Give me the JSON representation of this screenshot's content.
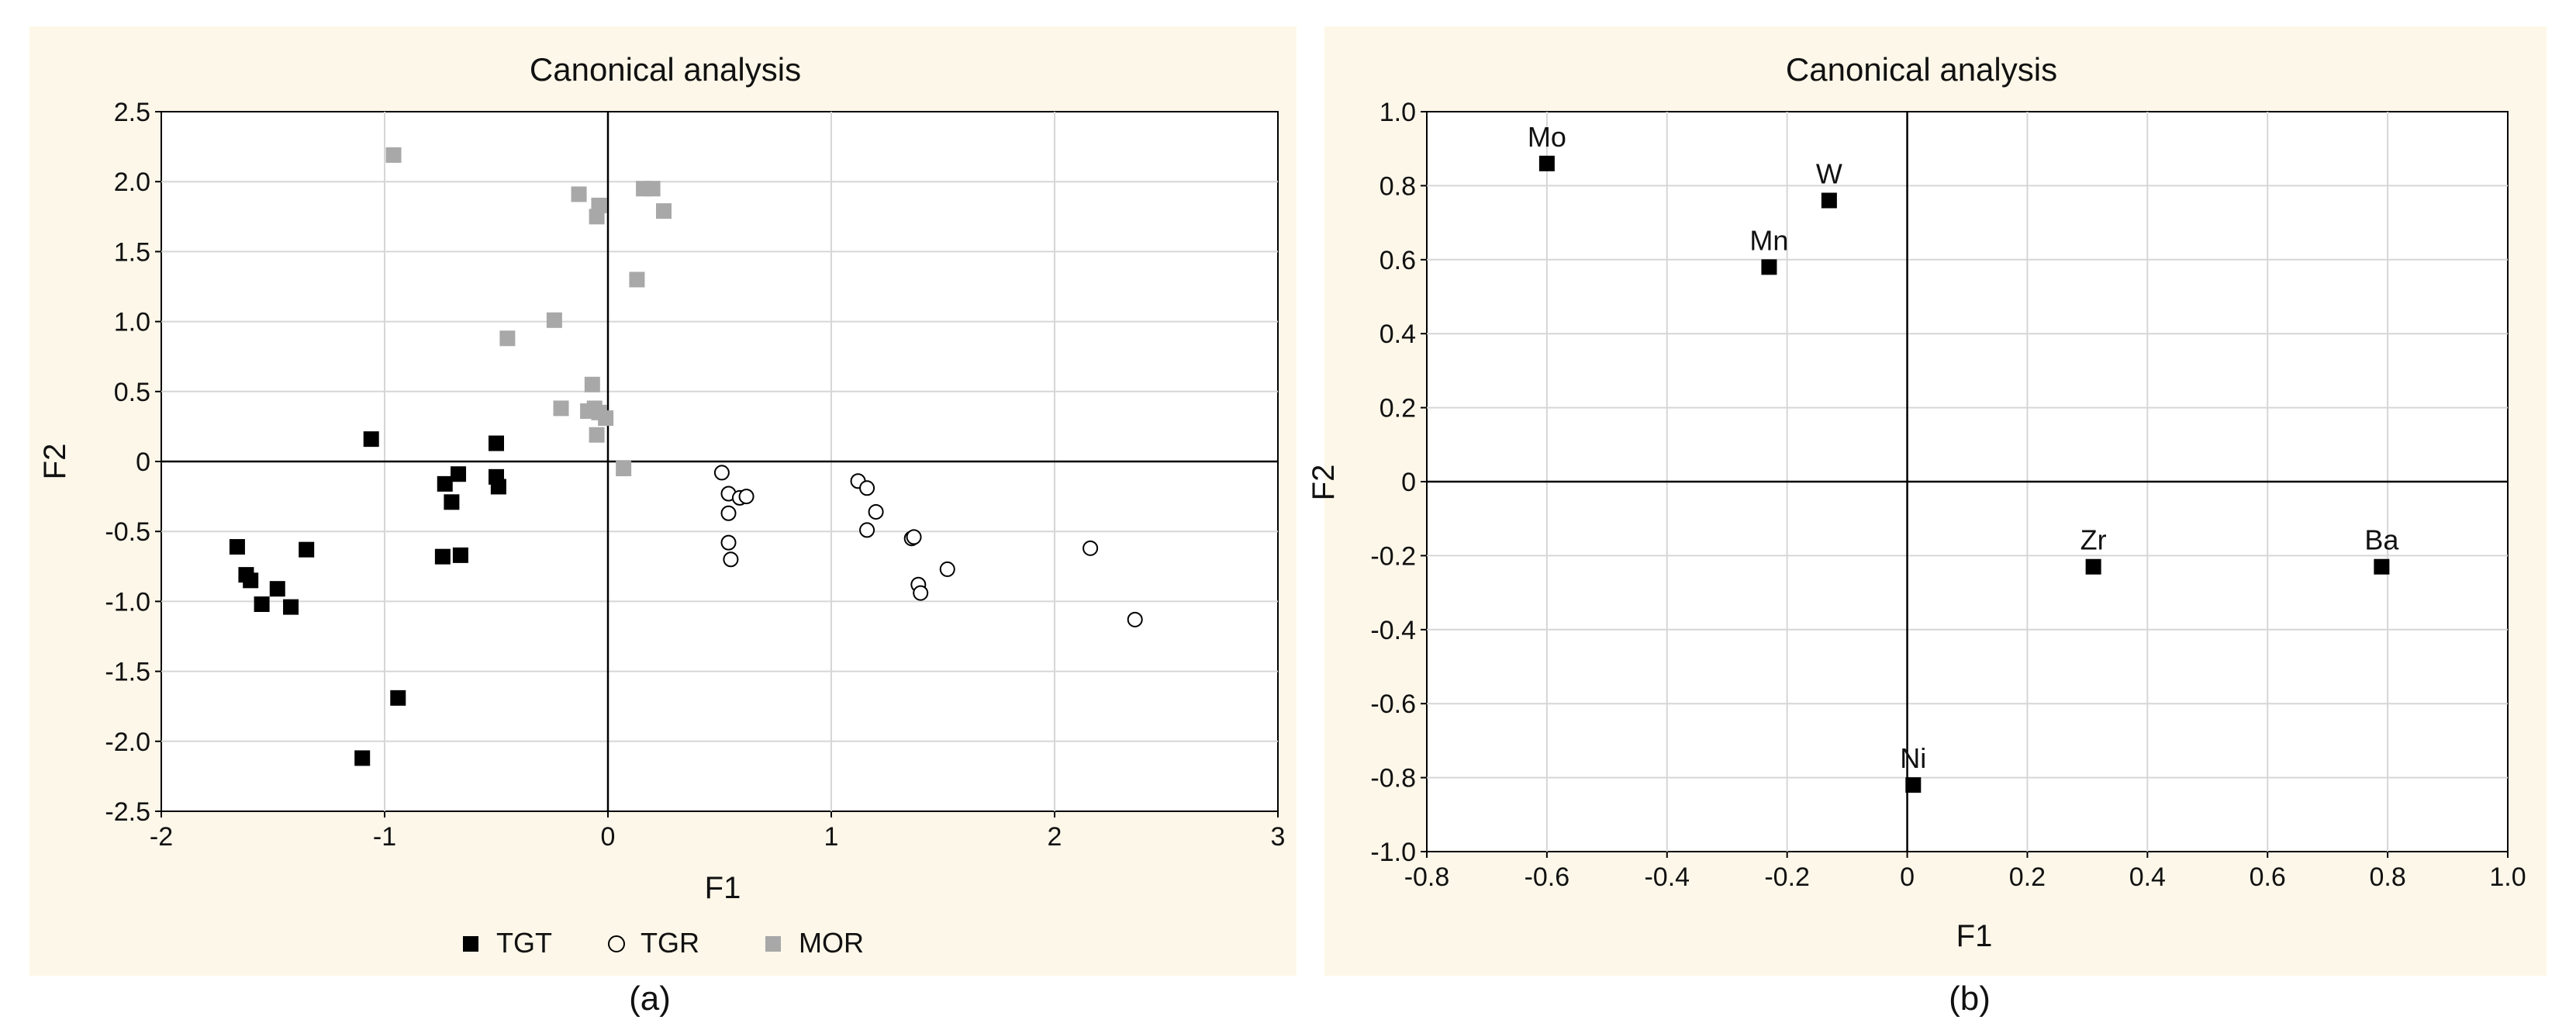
{
  "chart_data": [
    {
      "type": "scatter",
      "title": "Canonical analysis",
      "xlabel": "F1",
      "ylabel": "F2",
      "xlim": [
        -2,
        3
      ],
      "ylim": [
        -2.5,
        2.5
      ],
      "xticks": [
        -2,
        -1,
        0,
        1,
        2,
        3
      ],
      "yticks": [
        2.5,
        2.0,
        1.5,
        1.0,
        0.5,
        0,
        -0.5,
        -1.0,
        -1.5,
        -2.0,
        -2.5
      ],
      "xtick_labels": [
        "-2",
        "-1",
        "0",
        "1",
        "2",
        "3"
      ],
      "ytick_labels": [
        "2.5",
        "2.0",
        "1.5",
        "1.0",
        "0.5",
        "0",
        "-0.5",
        "-1.0",
        "-1.5",
        "-2.0",
        "-2.5"
      ],
      "grid": true,
      "legend_position": "bottom-center",
      "caption": "(a)",
      "series": [
        {
          "name": "TGT",
          "marker": "filled-square",
          "color": "#000000",
          "x": [
            -1.66,
            -1.62,
            -1.6,
            -1.55,
            -1.48,
            -1.42,
            -1.35,
            -1.1,
            -1.06,
            -0.94,
            -0.73,
            -0.74,
            -0.7,
            -0.67,
            -0.66,
            -0.5,
            -0.5,
            -0.49
          ],
          "y": [
            -0.61,
            -0.81,
            -0.85,
            -1.02,
            -0.91,
            -1.04,
            -0.63,
            -2.12,
            0.16,
            -1.69,
            -0.16,
            -0.68,
            -0.29,
            -0.09,
            -0.67,
            0.13,
            -0.11,
            -0.18
          ]
        },
        {
          "name": "TGR",
          "marker": "open-circle",
          "color": "#000000",
          "x": [
            0.51,
            0.54,
            0.54,
            0.54,
            0.55,
            0.59,
            0.62,
            1.12,
            1.16,
            1.16,
            1.2,
            1.36,
            1.37,
            1.39,
            1.4,
            1.52,
            2.16,
            2.36
          ],
          "y": [
            -0.08,
            -0.23,
            -0.37,
            -0.58,
            -0.7,
            -0.26,
            -0.25,
            -0.14,
            -0.49,
            -0.19,
            -0.36,
            -0.55,
            -0.54,
            -0.88,
            -0.94,
            -0.77,
            -0.62,
            -1.13
          ]
        },
        {
          "name": "MOR",
          "marker": "filled-square",
          "color": "#a8a8a8",
          "x": [
            -0.96,
            -0.45,
            -0.24,
            -0.21,
            -0.13,
            -0.09,
            -0.07,
            -0.06,
            -0.05,
            -0.05,
            -0.04,
            -0.04,
            -0.01,
            0.07,
            0.13,
            0.16,
            0.2,
            0.25
          ],
          "y": [
            2.19,
            0.88,
            1.01,
            0.38,
            1.91,
            0.36,
            0.55,
            0.38,
            1.75,
            0.19,
            1.83,
            0.35,
            0.31,
            -0.05,
            1.3,
            1.95,
            1.95,
            1.79
          ]
        }
      ]
    },
    {
      "type": "scatter",
      "title": "Canonical analysis",
      "xlabel": "F1",
      "ylabel": "F2",
      "xlim": [
        -0.8,
        1.0
      ],
      "ylim": [
        -1.0,
        1.0
      ],
      "xticks": [
        -0.8,
        -0.6,
        -0.4,
        -0.2,
        0,
        0.2,
        0.4,
        0.6,
        0.8,
        1.0
      ],
      "yticks": [
        1.0,
        0.8,
        0.6,
        0.4,
        0.2,
        0,
        -0.2,
        -0.4,
        -0.6,
        -0.8,
        -1.0
      ],
      "xtick_labels": [
        "-0.8",
        "-0.6",
        "-0.4",
        "-0.2",
        "0",
        "0.2",
        "0.4",
        "0.6",
        "0.8",
        "1.0"
      ],
      "ytick_labels": [
        "1.0",
        "0.8",
        "0.6",
        "0.4",
        "0.2",
        "0",
        "-0.2",
        "-0.4",
        "-0.6",
        "-0.8",
        "-1.0"
      ],
      "grid": true,
      "caption": "(b)",
      "points": [
        {
          "label": "Mo",
          "x": -0.6,
          "y": 0.86
        },
        {
          "label": "W",
          "x": -0.13,
          "y": 0.76
        },
        {
          "label": "Mn",
          "x": -0.23,
          "y": 0.58
        },
        {
          "label": "Zr",
          "x": 0.31,
          "y": -0.23
        },
        {
          "label": "Ba",
          "x": 0.79,
          "y": -0.23
        },
        {
          "label": "Ni",
          "x": 0.01,
          "y": -0.82
        }
      ]
    }
  ]
}
